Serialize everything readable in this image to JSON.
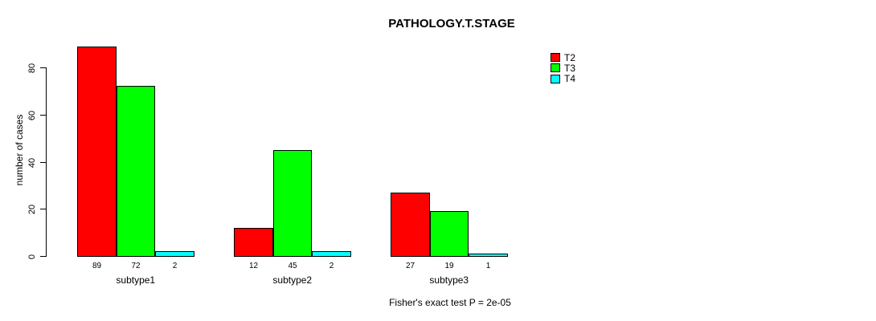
{
  "title": "PATHOLOGY.T.STAGE",
  "footnote": "Fisher's exact test P = 2e-05",
  "chart_data": {
    "type": "bar",
    "title": "PATHOLOGY.T.STAGE",
    "xlabel": "",
    "ylabel": "number of cases",
    "annotation": "Fisher's exact test P = 2e-05",
    "categories": [
      "subtype1",
      "subtype2",
      "subtype3"
    ],
    "series": [
      {
        "name": "T2",
        "color": "#ff0000",
        "values": [
          89,
          12,
          27
        ]
      },
      {
        "name": "T3",
        "color": "#00ff00",
        "values": [
          72,
          45,
          19
        ]
      },
      {
        "name": "T4",
        "color": "#00ffff",
        "values": [
          2,
          2,
          1
        ]
      }
    ],
    "bar_value_labels": [
      [
        "89",
        "72",
        "2"
      ],
      [
        "12",
        "45",
        "2"
      ],
      [
        "27",
        "19",
        "1"
      ]
    ],
    "yticks": [
      0,
      20,
      40,
      60,
      80
    ],
    "ylim": [
      0,
      89
    ],
    "grid": false,
    "legend_position": "top-right",
    "legend_entries": [
      "T2",
      "T3",
      "T4"
    ],
    "axis_color": "#000000",
    "bar_border_color": "#000000"
  }
}
